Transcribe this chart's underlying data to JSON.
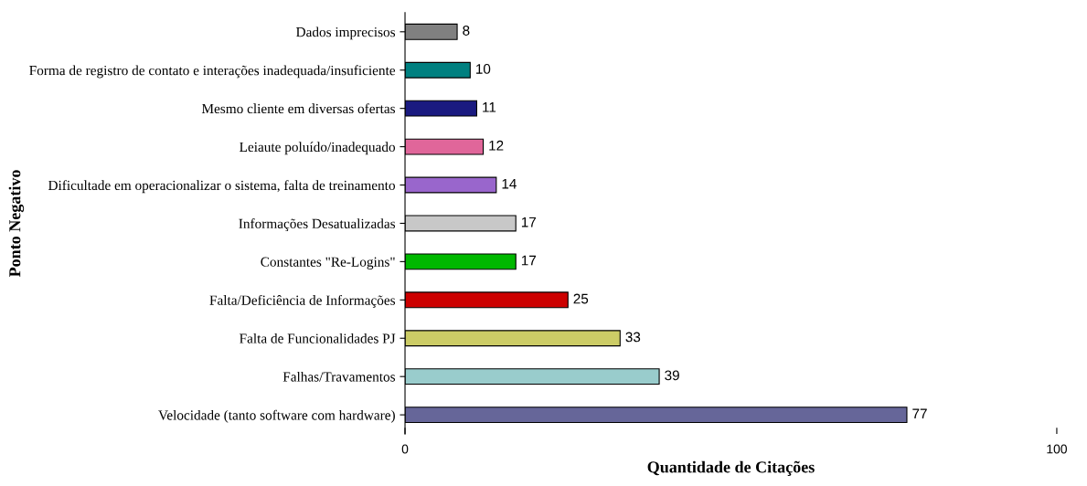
{
  "chart_data": {
    "type": "bar",
    "orientation": "horizontal",
    "xlabel": "Quantidade de Citações",
    "ylabel": "Ponto Negativo",
    "categories": [
      "Dados imprecisos",
      "Forma de registro de contato e interações inadequada/insuficiente",
      "Mesmo cliente em diversas ofertas",
      "Leiaute poluído/inadequado",
      "Dificultade em operacionalizar o sistema, falta de treinamento",
      "Informações Desatualizadas",
      "Constantes \"Re-Logins\"",
      "Falta/Deficiência de Informações",
      "Falta de Funcionalidades PJ",
      "Falhas/Travamentos",
      "Velocidade (tanto software com hardware)"
    ],
    "values": [
      8,
      10,
      11,
      12,
      14,
      17,
      17,
      25,
      33,
      39,
      77
    ],
    "colors": [
      "#808080",
      "#008080",
      "#1a1a80",
      "#e0669a",
      "#9966cc",
      "#c8c8c8",
      "#00b800",
      "#cc0000",
      "#cccc66",
      "#99cccc",
      "#666699"
    ],
    "xlim": [
      0,
      100
    ],
    "xticks": [
      0,
      100
    ],
    "data_labels": true,
    "grid": false
  }
}
